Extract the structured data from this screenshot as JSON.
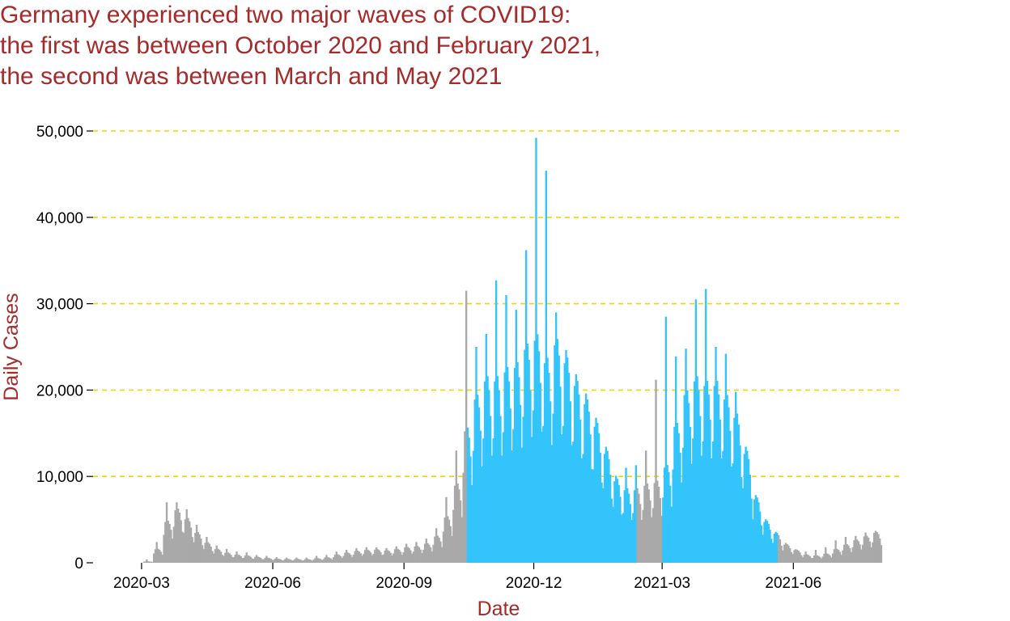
{
  "title_lines": [
    "Germany experienced two major waves of COVID19:",
    "the first was between October 2020 and February 2021,",
    "the second was between March and May 2021"
  ],
  "colors": {
    "title": "#a52a2a",
    "axis_title": "#a52a2a",
    "bar_normal": "#a9a9a9",
    "bar_wave": "#33c4fb",
    "grid": "#f2d400"
  },
  "chart_data": {
    "type": "bar",
    "title": "Germany experienced two major waves of COVID19: the first was between October 2020 and February 2021, the second was between March and May 2021",
    "xlabel": "Date",
    "ylabel": "Daily Cases",
    "ylim": [
      0,
      50000
    ],
    "y_ticks": [
      0,
      10000,
      20000,
      30000,
      40000,
      50000
    ],
    "y_tick_labels": [
      "0",
      "10,000",
      "20,000",
      "30,000",
      "40,000",
      "50,000"
    ],
    "x_range": [
      "2020-01-27",
      "2021-08-17"
    ],
    "x_ticks": [
      "2020-03-01",
      "2020-06-01",
      "2020-09-01",
      "2020-12-01",
      "2021-03-01",
      "2021-06-01"
    ],
    "x_tick_labels": [
      "2020-03",
      "2020-06",
      "2020-09",
      "2020-12",
      "2021-03",
      "2021-06"
    ],
    "grid": "horizontal dashed",
    "highlight_periods": [
      {
        "start": "2020-10-15",
        "end": "2021-02-10"
      },
      {
        "start": "2021-03-01",
        "end": "2021-05-20"
      }
    ],
    "series": [
      {
        "values_by_week": {
          "start": "2020-01-27",
          "weekly_mean": [
            0,
            0,
            0,
            0,
            0,
            150,
            1500,
            4500,
            5800,
            4800,
            3300,
            2200,
            1500,
            1100,
            900,
            800,
            650,
            550,
            450,
            420,
            420,
            400,
            500,
            600,
            900,
            1100,
            1300,
            1400,
            1450,
            1350,
            1500,
            1700,
            1800,
            2100,
            2900,
            5000,
            8500,
            14500,
            18000,
            20000,
            20000,
            21000,
            21500,
            23500,
            24500,
            22000,
            24000,
            22000,
            19500,
            17500,
            15000,
            12000,
            9000,
            8000,
            8000,
            8500,
            8800,
            10500,
            15000,
            18500,
            20000,
            19500,
            19500,
            18000,
            16000,
            12000,
            7000,
            4500,
            3200,
            2000,
            1400,
            900,
            800,
            1000,
            1500,
            2000,
            2500,
            2900,
            3300
          ],
          "weekly_peak": [
            0,
            0,
            0,
            0,
            0,
            400,
            2400,
            7000,
            7000,
            6200,
            4400,
            3000,
            2000,
            1600,
            1300,
            1200,
            900,
            800,
            650,
            600,
            600,
            600,
            800,
            900,
            1300,
            1500,
            1700,
            1800,
            1800,
            1700,
            1900,
            2200,
            2400,
            2800,
            4000,
            7600,
            13000,
            31500,
            25000,
            26500,
            32700,
            31000,
            29300,
            36200,
            49200,
            45400,
            29000,
            18000,
            15500,
            12900,
            9900,
            10000,
            9800,
            11000,
            11300,
            13000,
            21200,
            28500,
            23900,
            24800,
            30500,
            31700,
            25000,
            24200,
            19800,
            12000,
            7000,
            5000,
            3500,
            2300,
            1400,
            1300,
            1500,
            1800,
            2600,
            3000,
            3100,
            3500,
            3700
          ]
        }
      }
    ]
  }
}
